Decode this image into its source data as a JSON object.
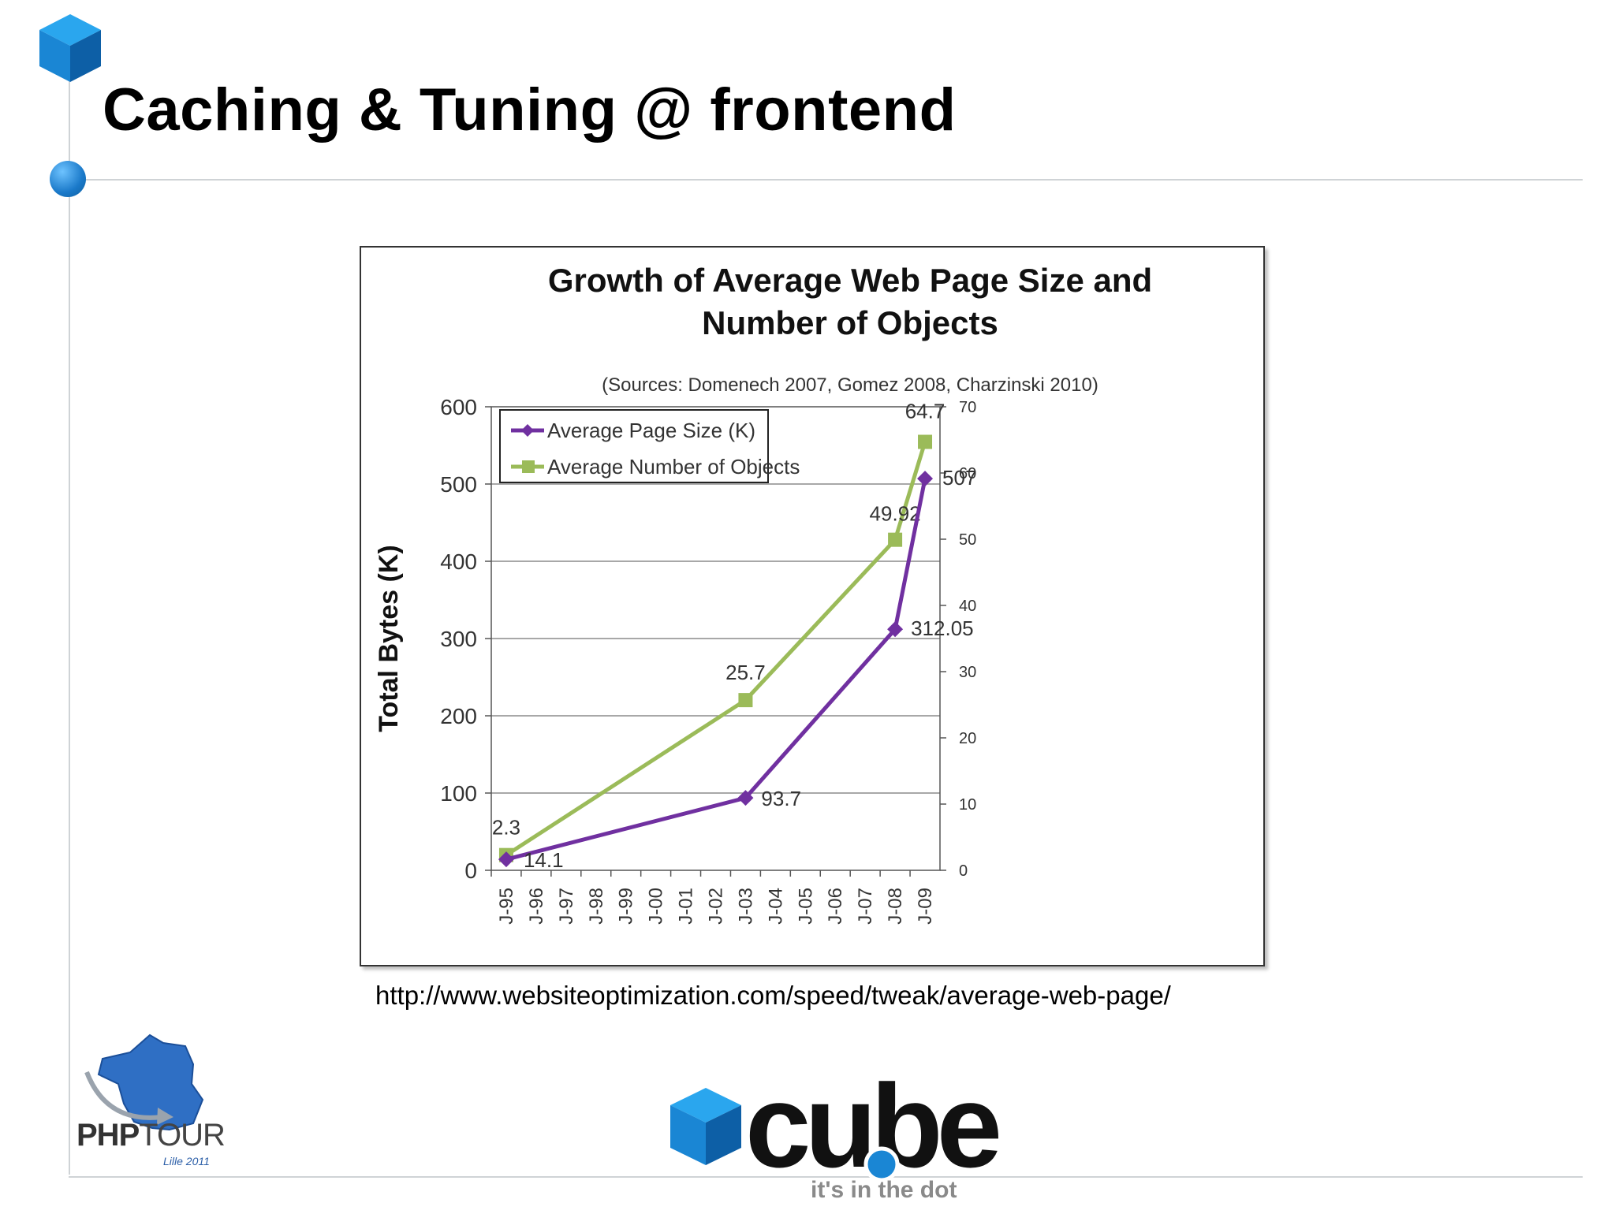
{
  "slide": {
    "title": "Caching & Tuning @ frontend",
    "source_url": "http://www.websiteoptimization.com/speed/tweak/average-web-page/"
  },
  "footer": {
    "left_logo_text_bold": "PHP",
    "left_logo_text_light": "TOUR",
    "left_logo_sub": "Lille 2011",
    "right_logo_text": "cube",
    "tagline": "it's in the dot"
  },
  "colors": {
    "purple": "#7030a0",
    "green": "#9bbb59",
    "accent_blue": "#1a79c9"
  },
  "chart_data": {
    "type": "line",
    "title_line1": "Growth of Average Web Page Size and",
    "title_line2": "Number of Objects",
    "subtitle": "(Sources: Domenech 2007, Gomez 2008, Charzinski 2010)",
    "ylabel": "Total Bytes (K)",
    "ylim": [
      0,
      600
    ],
    "yticks": [
      "0",
      "100",
      "200",
      "300",
      "400",
      "500",
      "600"
    ],
    "y2lim": [
      0,
      70
    ],
    "y2ticks": [
      "0",
      "10",
      "20",
      "30",
      "40",
      "50",
      "60",
      "70"
    ],
    "categories": [
      "J-95",
      "J-96",
      "J-97",
      "J-98",
      "J-99",
      "J-00",
      "J-01",
      "J-02",
      "J-03",
      "J-04",
      "J-05",
      "J-06",
      "J-07",
      "J-08",
      "J-09"
    ],
    "series": [
      {
        "name": "Average Page Size (K)",
        "axis": "left",
        "points": [
          {
            "x": 0,
            "y": 14.1,
            "label": "14.1"
          },
          {
            "x": 8,
            "y": 93.7,
            "label": "93.7"
          },
          {
            "x": 13,
            "y": 312.05,
            "label": "312.05"
          },
          {
            "x": 14,
            "y": 507,
            "label": "507"
          }
        ]
      },
      {
        "name": "Average Number of Objects",
        "axis": "right",
        "points": [
          {
            "x": 0,
            "y": 2.3,
            "label": "2.3"
          },
          {
            "x": 8,
            "y": 25.7,
            "label": "25.7"
          },
          {
            "x": 13,
            "y": 49.92,
            "label": "49.92"
          },
          {
            "x": 14,
            "y": 64.7,
            "label": "64.7"
          }
        ]
      }
    ],
    "legend_position": "top-left"
  }
}
